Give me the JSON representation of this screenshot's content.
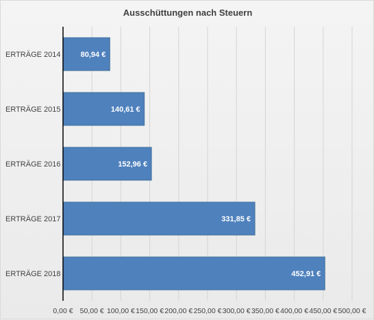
{
  "chart_data": {
    "type": "bar",
    "orientation": "horizontal",
    "title": "Ausschüttungen nach Steuern",
    "categories": [
      "ERTRÄGE 2014",
      "ERTRÄGE 2015",
      "ERTRÄGE 2016",
      "ERTRÄGE 2017",
      "ERTRÄGE 2018"
    ],
    "values": [
      80.94,
      140.61,
      152.96,
      331.85,
      452.91
    ],
    "data_labels": [
      "80,94 €",
      "140,61 €",
      "152,96 €",
      "331,85 €",
      "452,91 €"
    ],
    "xlim": [
      0,
      500
    ],
    "x_ticks": [
      0,
      50,
      100,
      150,
      200,
      250,
      300,
      350,
      400,
      450,
      500
    ],
    "x_tick_labels": [
      "0,00 €",
      "50,00 €",
      "100,00 €",
      "150,00 €",
      "200,00 €",
      "250,00 €",
      "300,00 €",
      "350,00 €",
      "400,00 €",
      "450,00 €",
      "500,00 €"
    ],
    "grid": true,
    "bar_color": "#4f81bd",
    "bar_edge_color": "#41719c",
    "gridline_color": "#d4d4d4",
    "axis_color": "#000000"
  }
}
